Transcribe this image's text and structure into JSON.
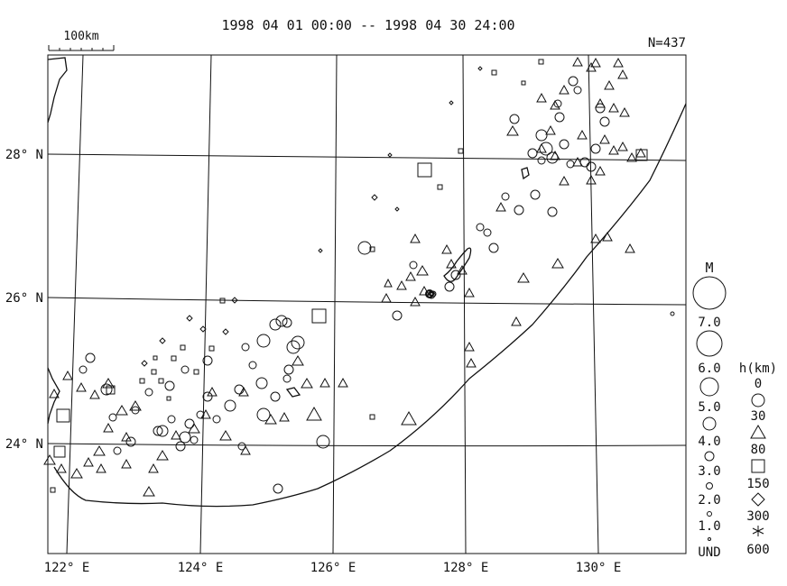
{
  "header": {
    "period": "1998 04 01 00:00 -- 1998 04 30 24:00",
    "count": "N=437",
    "scale_label": "100km"
  },
  "axes": {
    "lat_labels": [
      "28° N",
      "26° N",
      "24° N"
    ],
    "lon_labels": [
      "122° E",
      "124° E",
      "126° E",
      "128° E",
      "130° E"
    ]
  },
  "legend": {
    "magnitude_title": "M",
    "magnitude_labels": [
      "7.0",
      "6.0",
      "5.0",
      "4.0",
      "3.0",
      "2.0",
      "1.0",
      "UND"
    ],
    "depth_title": "h(km)",
    "depth_labels": [
      "0",
      "30",
      "80",
      "150",
      "300",
      "600"
    ]
  }
}
